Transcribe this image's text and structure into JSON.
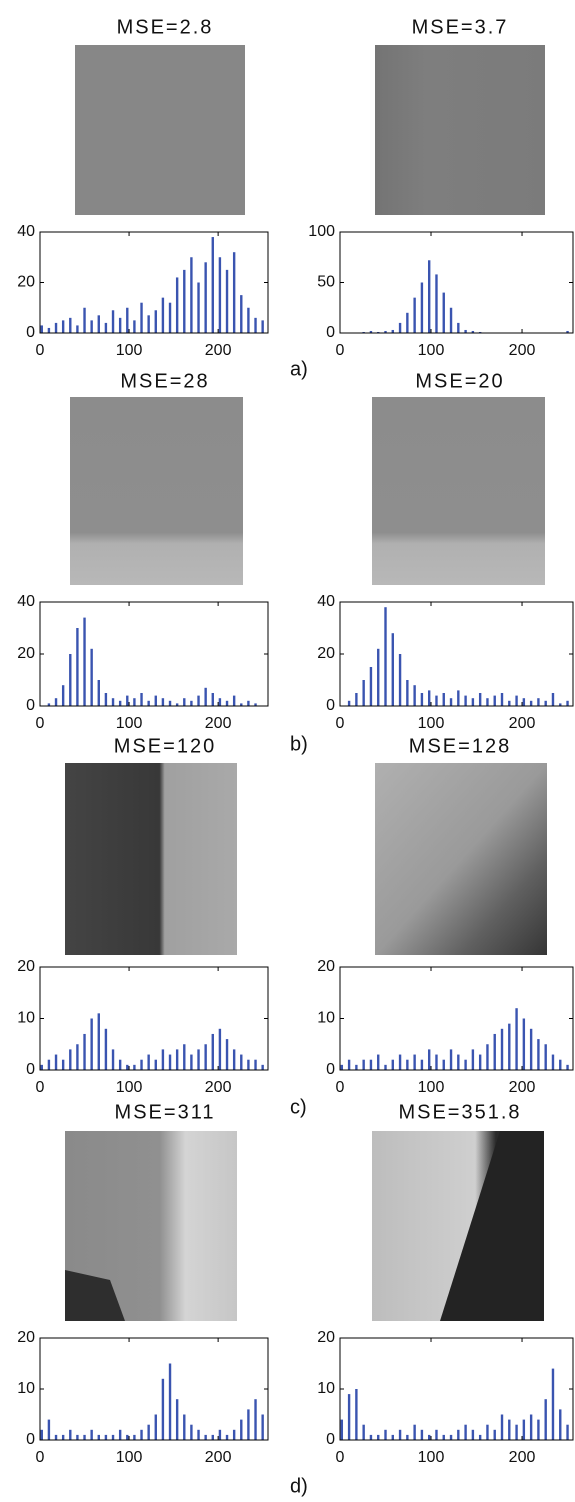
{
  "panel_labels": [
    "a)",
    "b)",
    "c)",
    "d)"
  ],
  "chart_data": [
    {
      "type": "bar",
      "title": "MSE=2.8",
      "color": "#3a54b0",
      "xlim": [
        0,
        256
      ],
      "ylim": [
        0,
        40
      ],
      "xticks": [
        0,
        100,
        200
      ],
      "yticks": [
        0,
        20,
        40
      ],
      "x": [
        2,
        10,
        18,
        26,
        34,
        42,
        50,
        58,
        66,
        74,
        82,
        90,
        98,
        106,
        114,
        122,
        130,
        138,
        146,
        154,
        162,
        170,
        178,
        186,
        194,
        202,
        210,
        218,
        226,
        234,
        242,
        250
      ],
      "values": [
        3,
        2,
        4,
        5,
        6,
        3,
        10,
        5,
        7,
        4,
        9,
        6,
        10,
        5,
        12,
        7,
        9,
        14,
        12,
        22,
        25,
        30,
        20,
        28,
        38,
        30,
        25,
        32,
        15,
        10,
        6,
        5
      ]
    },
    {
      "type": "bar",
      "title": "MSE=3.7",
      "color": "#3a54b0",
      "xlim": [
        0,
        256
      ],
      "ylim": [
        0,
        100
      ],
      "xticks": [
        0,
        100,
        200
      ],
      "yticks": [
        0,
        50,
        100
      ],
      "x": [
        2,
        10,
        18,
        26,
        34,
        42,
        50,
        58,
        66,
        74,
        82,
        90,
        98,
        106,
        114,
        122,
        130,
        138,
        146,
        154,
        162,
        170,
        178,
        186,
        194,
        202,
        210,
        218,
        226,
        234,
        242,
        250
      ],
      "values": [
        0,
        0,
        0,
        1,
        2,
        1,
        2,
        3,
        10,
        20,
        35,
        50,
        72,
        58,
        40,
        25,
        10,
        3,
        2,
        1,
        0,
        0,
        0,
        0,
        0,
        0,
        0,
        0,
        0,
        0,
        0,
        2
      ]
    },
    {
      "type": "bar",
      "title": "MSE=28",
      "color": "#3a54b0",
      "xlim": [
        0,
        256
      ],
      "ylim": [
        0,
        40
      ],
      "xticks": [
        0,
        100,
        200
      ],
      "yticks": [
        0,
        20,
        40
      ],
      "x": [
        2,
        10,
        18,
        26,
        34,
        42,
        50,
        58,
        66,
        74,
        82,
        90,
        98,
        106,
        114,
        122,
        130,
        138,
        146,
        154,
        162,
        170,
        178,
        186,
        194,
        202,
        210,
        218,
        226,
        234,
        242,
        250
      ],
      "values": [
        0,
        1,
        3,
        8,
        20,
        30,
        34,
        22,
        10,
        5,
        3,
        2,
        4,
        3,
        5,
        2,
        4,
        3,
        2,
        1,
        3,
        2,
        4,
        7,
        5,
        3,
        2,
        4,
        1,
        2,
        1,
        0
      ]
    },
    {
      "type": "bar",
      "title": "MSE=20",
      "color": "#3a54b0",
      "xlim": [
        0,
        256
      ],
      "ylim": [
        0,
        40
      ],
      "xticks": [
        0,
        100,
        200
      ],
      "yticks": [
        0,
        20,
        40
      ],
      "x": [
        2,
        10,
        18,
        26,
        34,
        42,
        50,
        58,
        66,
        74,
        82,
        90,
        98,
        106,
        114,
        122,
        130,
        138,
        146,
        154,
        162,
        170,
        178,
        186,
        194,
        202,
        210,
        218,
        226,
        234,
        242,
        250
      ],
      "values": [
        0,
        2,
        5,
        10,
        15,
        22,
        38,
        28,
        20,
        10,
        8,
        5,
        6,
        4,
        5,
        3,
        6,
        4,
        3,
        5,
        3,
        4,
        5,
        2,
        4,
        3,
        2,
        3,
        2,
        5,
        1,
        2
      ]
    },
    {
      "type": "bar",
      "title": "MSE=120",
      "color": "#3a54b0",
      "xlim": [
        0,
        256
      ],
      "ylim": [
        0,
        20
      ],
      "xticks": [
        0,
        100,
        200
      ],
      "yticks": [
        0,
        10,
        20
      ],
      "x": [
        2,
        10,
        18,
        26,
        34,
        42,
        50,
        58,
        66,
        74,
        82,
        90,
        98,
        106,
        114,
        122,
        130,
        138,
        146,
        154,
        162,
        170,
        178,
        186,
        194,
        202,
        210,
        218,
        226,
        234,
        242,
        250
      ],
      "values": [
        1,
        2,
        3,
        2,
        4,
        5,
        7,
        10,
        11,
        8,
        4,
        2,
        1,
        1,
        2,
        3,
        2,
        4,
        3,
        4,
        5,
        3,
        4,
        5,
        7,
        8,
        6,
        4,
        3,
        2,
        2,
        1
      ]
    },
    {
      "type": "bar",
      "title": "MSE=128",
      "color": "#3a54b0",
      "xlim": [
        0,
        256
      ],
      "ylim": [
        0,
        20
      ],
      "xticks": [
        0,
        100,
        200
      ],
      "yticks": [
        0,
        10,
        20
      ],
      "x": [
        2,
        10,
        18,
        26,
        34,
        42,
        50,
        58,
        66,
        74,
        82,
        90,
        98,
        106,
        114,
        122,
        130,
        138,
        146,
        154,
        162,
        170,
        178,
        186,
        194,
        202,
        210,
        218,
        226,
        234,
        242,
        250
      ],
      "values": [
        1,
        2,
        1,
        2,
        2,
        3,
        1,
        2,
        3,
        2,
        3,
        2,
        4,
        3,
        2,
        4,
        3,
        2,
        4,
        3,
        5,
        7,
        8,
        9,
        12,
        10,
        8,
        6,
        5,
        3,
        2,
        1
      ]
    },
    {
      "type": "bar",
      "title": "MSE=311",
      "color": "#3a54b0",
      "xlim": [
        0,
        256
      ],
      "ylim": [
        0,
        20
      ],
      "xticks": [
        0,
        100,
        200
      ],
      "yticks": [
        0,
        10,
        20
      ],
      "x": [
        2,
        10,
        18,
        26,
        34,
        42,
        50,
        58,
        66,
        74,
        82,
        90,
        98,
        106,
        114,
        122,
        130,
        138,
        146,
        154,
        162,
        170,
        178,
        186,
        194,
        202,
        210,
        218,
        226,
        234,
        242,
        250
      ],
      "values": [
        2,
        4,
        1,
        1,
        2,
        1,
        1,
        2,
        1,
        1,
        1,
        2,
        1,
        1,
        2,
        3,
        5,
        12,
        15,
        8,
        5,
        3,
        2,
        1,
        1,
        2,
        1,
        2,
        4,
        6,
        8,
        5
      ]
    },
    {
      "type": "bar",
      "title": "MSE=351.8",
      "color": "#3a54b0",
      "xlim": [
        0,
        256
      ],
      "ylim": [
        0,
        20
      ],
      "xticks": [
        0,
        100,
        200
      ],
      "yticks": [
        0,
        10,
        20
      ],
      "x": [
        2,
        10,
        18,
        26,
        34,
        42,
        50,
        58,
        66,
        74,
        82,
        90,
        98,
        106,
        114,
        122,
        130,
        138,
        146,
        154,
        162,
        170,
        178,
        186,
        194,
        202,
        210,
        218,
        226,
        234,
        242,
        250
      ],
      "values": [
        4,
        9,
        10,
        3,
        1,
        1,
        2,
        1,
        2,
        1,
        3,
        2,
        1,
        2,
        1,
        1,
        2,
        3,
        2,
        1,
        3,
        2,
        5,
        4,
        3,
        4,
        5,
        4,
        8,
        14,
        6,
        3
      ]
    }
  ]
}
